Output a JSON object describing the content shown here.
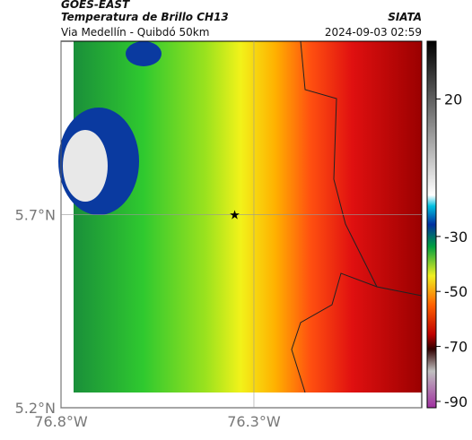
{
  "header": {
    "source": "GOES-EAST",
    "title": "Temperatura de Brillo CH13",
    "credit": "SIATA",
    "subtitle": "Via Medellín - Quibdó 50km",
    "timestamp": "2024-09-03 02:59"
  },
  "map": {
    "xlim": [
      -76.8,
      -75.865
    ],
    "ylim": [
      5.2,
      6.15
    ],
    "xticks": [
      {
        "value": -76.8,
        "label": "76.8°W"
      },
      {
        "value": -76.3,
        "label": "76.3°W"
      }
    ],
    "yticks": [
      {
        "value": 5.2,
        "label": "5.2°N"
      },
      {
        "value": 5.7,
        "label": "5.7°N"
      }
    ],
    "marker": {
      "lon": -76.35,
      "lat": 5.7
    }
  },
  "colorbar": {
    "lim": [
      -92.3,
      41
    ],
    "ticks": [
      20,
      -30,
      -50,
      -70,
      -90
    ]
  }
}
